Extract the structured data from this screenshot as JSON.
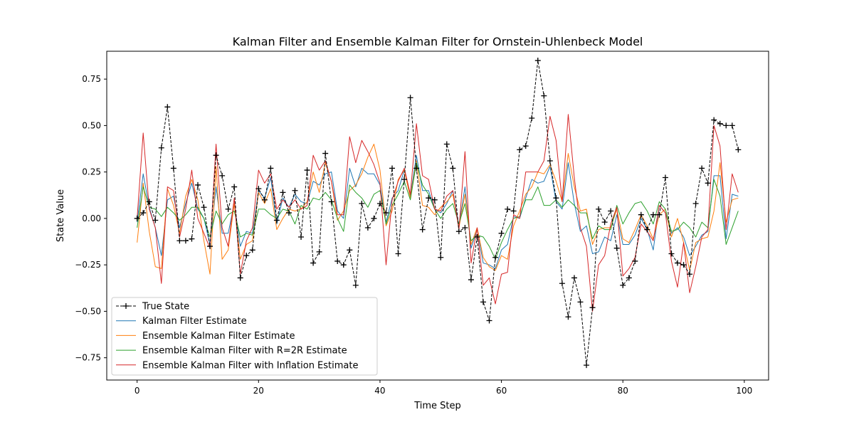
{
  "chart_data": {
    "type": "line",
    "title": "Kalman Filter and Ensemble Kalman Filter for Ornstein-Uhlenbeck Model",
    "xlabel": "Time Step",
    "ylabel": "State Value",
    "xlim": [
      -5,
      104
    ],
    "ylim": [
      -0.87,
      0.9
    ],
    "xticks": [
      0,
      20,
      40,
      60,
      80,
      100
    ],
    "yticks": [
      -0.75,
      -0.5,
      -0.25,
      0.0,
      0.25,
      0.5,
      0.75
    ],
    "xtick_labels": [
      "0",
      "20",
      "40",
      "60",
      "80",
      "100"
    ],
    "ytick_labels": [
      "−0.75",
      "−0.50",
      "−0.25",
      "0.00",
      "0.25",
      "0.50",
      "0.75"
    ],
    "legend_position": "lower-left",
    "grid": false,
    "series": [
      {
        "name": "True State",
        "color": "#000000",
        "style": "dashed-plus",
        "values": [
          0.0,
          0.03,
          0.09,
          -0.01,
          0.38,
          0.6,
          0.27,
          -0.12,
          -0.12,
          -0.11,
          0.18,
          0.06,
          -0.15,
          0.34,
          0.23,
          0.05,
          0.17,
          -0.32,
          -0.2,
          -0.17,
          0.16,
          0.1,
          0.27,
          -0.01,
          0.14,
          0.03,
          0.15,
          -0.1,
          0.26,
          -0.24,
          -0.18,
          0.35,
          0.09,
          -0.23,
          -0.25,
          -0.17,
          -0.36,
          0.08,
          -0.05,
          0.0,
          0.08,
          0.03,
          0.27,
          -0.19,
          0.21,
          0.65,
          0.27,
          -0.06,
          0.11,
          0.1,
          -0.21,
          0.4,
          0.27,
          -0.07,
          -0.05,
          -0.33,
          -0.1,
          -0.45,
          -0.55,
          -0.21,
          -0.08,
          0.05,
          0.04,
          0.37,
          0.39,
          0.54,
          0.85,
          0.66,
          0.31,
          0.11,
          -0.35,
          -0.53,
          -0.32,
          -0.45,
          -0.79,
          -0.48,
          0.05,
          -0.02,
          0.04,
          -0.16,
          -0.36,
          -0.32,
          -0.23,
          0.02,
          -0.06,
          0.02,
          0.02,
          0.22,
          -0.19,
          -0.24,
          -0.25,
          -0.3,
          0.08,
          0.27,
          0.19,
          0.53,
          0.51,
          0.5,
          0.5,
          0.37
        ]
      },
      {
        "name": "Kalman Filter Estimate",
        "color": "#1f77b4",
        "style": "solid",
        "values": [
          -0.02,
          0.24,
          0.06,
          -0.05,
          -0.2,
          0.1,
          0.12,
          -0.05,
          0.08,
          0.19,
          0.05,
          0.0,
          -0.14,
          0.17,
          -0.08,
          -0.08,
          0.08,
          -0.15,
          -0.07,
          -0.08,
          0.15,
          0.11,
          0.22,
          -0.03,
          0.11,
          0.06,
          0.13,
          0.09,
          0.08,
          0.2,
          0.18,
          0.24,
          0.25,
          0.04,
          0.0,
          0.27,
          0.17,
          0.27,
          0.24,
          0.24,
          0.18,
          -0.02,
          0.11,
          0.15,
          0.26,
          0.12,
          0.34,
          0.15,
          0.15,
          0.05,
          0.03,
          0.08,
          0.15,
          -0.04,
          0.17,
          -0.16,
          -0.06,
          -0.24,
          -0.25,
          -0.27,
          -0.17,
          -0.14,
          0.01,
          0.0,
          0.11,
          0.21,
          0.19,
          0.2,
          0.28,
          0.09,
          0.05,
          0.3,
          0.08,
          -0.07,
          -0.04,
          -0.19,
          -0.18,
          -0.1,
          -0.12,
          0.02,
          -0.14,
          -0.14,
          -0.09,
          0.0,
          -0.06,
          -0.17,
          0.07,
          0.03,
          -0.08,
          -0.05,
          -0.1,
          -0.2,
          -0.15,
          -0.09,
          -0.07,
          0.23,
          0.23,
          -0.11,
          0.13,
          0.12
        ]
      },
      {
        "name": "Ensemble Kalman Filter Estimate",
        "color": "#ff7f0e",
        "style": "solid",
        "values": [
          -0.13,
          0.19,
          -0.07,
          -0.26,
          -0.27,
          0.16,
          0.07,
          -0.08,
          0.12,
          0.21,
          0.1,
          -0.12,
          -0.3,
          0.28,
          -0.22,
          -0.17,
          0.08,
          -0.22,
          -0.14,
          -0.12,
          0.14,
          0.08,
          0.16,
          -0.06,
          0.0,
          0.05,
          0.04,
          0.05,
          0.09,
          0.25,
          0.14,
          0.3,
          0.2,
          -0.01,
          0.04,
          0.15,
          0.18,
          0.24,
          0.33,
          0.4,
          0.26,
          -0.04,
          0.04,
          0.21,
          0.26,
          0.11,
          0.31,
          0.07,
          0.06,
          0.02,
          0.06,
          0.09,
          0.13,
          -0.05,
          0.13,
          -0.14,
          -0.05,
          -0.21,
          -0.26,
          -0.28,
          -0.2,
          -0.22,
          -0.04,
          0.04,
          0.13,
          0.17,
          0.25,
          0.24,
          0.29,
          0.2,
          0.09,
          0.35,
          0.17,
          0.04,
          0.05,
          -0.14,
          -0.06,
          -0.05,
          -0.05,
          0.05,
          -0.11,
          -0.13,
          -0.06,
          0.02,
          -0.04,
          -0.11,
          0.02,
          0.05,
          -0.1,
          0.0,
          -0.13,
          -0.28,
          -0.13,
          -0.11,
          -0.1,
          0.04,
          0.3,
          -0.02,
          0.1,
          0.11
        ]
      },
      {
        "name": "Ensemble Kalman Filter with R=2R Estimate",
        "color": "#2ca02c",
        "style": "solid",
        "values": [
          -0.05,
          0.17,
          0.06,
          0.05,
          0.01,
          0.06,
          0.03,
          -0.01,
          0.02,
          0.06,
          0.06,
          0.0,
          -0.1,
          0.04,
          -0.03,
          0.02,
          0.04,
          -0.1,
          -0.08,
          -0.09,
          0.05,
          0.05,
          0.02,
          0.0,
          0.05,
          0.04,
          -0.03,
          0.07,
          0.05,
          0.11,
          0.1,
          0.14,
          0.1,
          0.0,
          -0.07,
          0.18,
          0.14,
          0.11,
          0.06,
          0.13,
          0.15,
          -0.03,
          0.07,
          0.13,
          0.2,
          0.1,
          0.3,
          0.18,
          0.13,
          0.05,
          0.0,
          0.05,
          0.08,
          -0.03,
          0.08,
          -0.12,
          -0.09,
          -0.1,
          -0.15,
          -0.22,
          -0.13,
          -0.06,
          0.0,
          0.01,
          0.1,
          0.1,
          0.17,
          0.07,
          0.07,
          0.1,
          0.06,
          0.1,
          0.07,
          0.03,
          0.03,
          -0.11,
          -0.04,
          -0.06,
          -0.06,
          0.07,
          -0.03,
          0.03,
          0.08,
          0.09,
          0.04,
          -0.03,
          0.09,
          0.05,
          -0.07,
          -0.06,
          -0.02,
          -0.05,
          -0.1,
          -0.02,
          -0.05,
          0.21,
          0.12,
          -0.14,
          -0.05,
          0.04
        ]
      },
      {
        "name": "Ensemble Kalman Filter with Inflation Estimate",
        "color": "#d62728",
        "style": "solid",
        "values": [
          0.0,
          0.46,
          0.05,
          -0.05,
          -0.35,
          0.17,
          0.15,
          -0.1,
          0.05,
          0.26,
          0.0,
          -0.08,
          -0.16,
          0.4,
          -0.05,
          -0.15,
          0.11,
          -0.3,
          -0.12,
          -0.05,
          0.26,
          0.19,
          0.24,
          0.05,
          0.1,
          0.06,
          0.1,
          0.05,
          0.07,
          0.34,
          0.26,
          0.31,
          0.2,
          0.02,
          0.02,
          0.44,
          0.3,
          0.42,
          0.36,
          0.29,
          0.19,
          -0.25,
          0.1,
          0.2,
          0.27,
          0.13,
          0.51,
          0.23,
          0.21,
          0.05,
          0.04,
          0.12,
          0.15,
          -0.06,
          0.36,
          -0.24,
          -0.05,
          -0.36,
          -0.32,
          -0.46,
          -0.3,
          -0.29,
          0.02,
          0.0,
          0.25,
          0.25,
          0.25,
          0.31,
          0.55,
          0.42,
          0.09,
          0.56,
          0.22,
          -0.05,
          -0.15,
          -0.5,
          -0.25,
          -0.2,
          -0.03,
          0.06,
          -0.31,
          -0.27,
          -0.21,
          -0.03,
          -0.07,
          -0.12,
          0.07,
          0.03,
          -0.23,
          -0.37,
          -0.13,
          -0.4,
          -0.26,
          -0.1,
          -0.06,
          0.5,
          0.39,
          -0.06,
          0.24,
          0.14
        ]
      }
    ]
  }
}
